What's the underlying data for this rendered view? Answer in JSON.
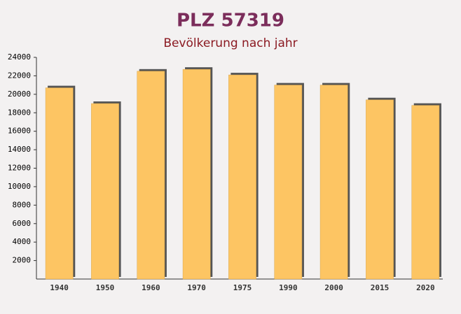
{
  "chart_data": {
    "type": "bar",
    "title": "PLZ 57319",
    "subtitle": "Bevölkerung nach jahr",
    "categories": [
      "1940",
      "1950",
      "1960",
      "1970",
      "1975",
      "1990",
      "2000",
      "2015",
      "2020"
    ],
    "values": [
      20700,
      19000,
      22500,
      22700,
      22100,
      21000,
      21000,
      19400,
      18800
    ],
    "color": "#fdc563",
    "ylim": [
      0,
      24000
    ],
    "yticks": [
      2000,
      4000,
      6000,
      8000,
      10000,
      12000,
      14000,
      16000,
      18000,
      20000,
      22000,
      24000
    ]
  }
}
